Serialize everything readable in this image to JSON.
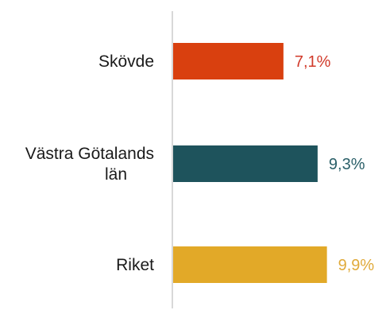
{
  "chart_data": {
    "type": "bar",
    "orientation": "horizontal",
    "categories": [
      [
        "Skövde"
      ],
      [
        "Västra Götalands",
        "län"
      ],
      [
        "Riket"
      ]
    ],
    "values": [
      7.1,
      9.3,
      9.9
    ],
    "value_labels": [
      "7,1%",
      "9,3%",
      "9,9%"
    ],
    "colors": [
      "#d9400f",
      "#1e535c",
      "#e2a928"
    ],
    "label_colors": [
      "#d13a2a",
      "#2a5f68",
      "#e0aa3a"
    ],
    "xlim": [
      0,
      13.6
    ],
    "axis_color": "#cccccc",
    "grid": false,
    "legend": "none"
  }
}
